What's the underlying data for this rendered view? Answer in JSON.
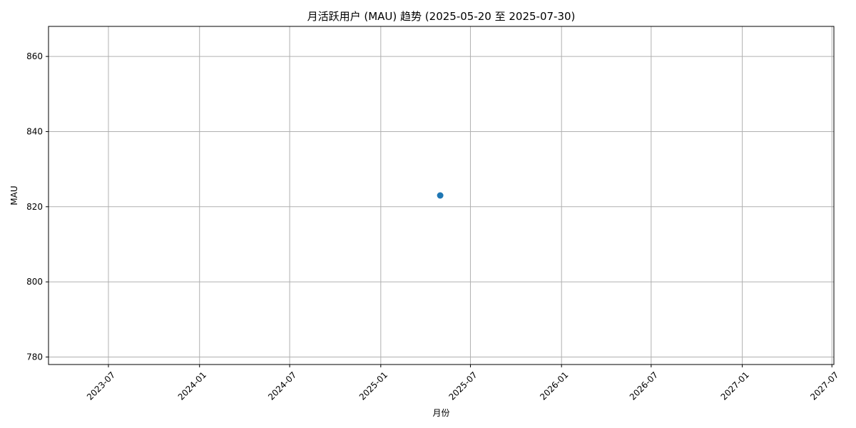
{
  "chart_data": {
    "type": "scatter",
    "title": "月活跃用户 (MAU) 趋势 (2025-05-20 至 2025-07-30)",
    "xlabel": "月份",
    "ylabel": "MAU",
    "x_axis_type": "date",
    "xlim": [
      "2023-03-02",
      "2027-07-05"
    ],
    "ylim": [
      778,
      868
    ],
    "x_ticks": [
      "2023-07",
      "2024-01",
      "2024-07",
      "2025-01",
      "2025-07",
      "2026-01",
      "2026-07",
      "2027-01",
      "2027-07"
    ],
    "y_ticks": [
      780,
      800,
      820,
      840,
      860
    ],
    "tick_label_rotation_deg": 45,
    "grid": true,
    "legend": "none",
    "series": [
      {
        "color": "#1f77b4",
        "points": [
          {
            "x": "2025-05-01",
            "y": 823
          }
        ]
      }
    ]
  }
}
